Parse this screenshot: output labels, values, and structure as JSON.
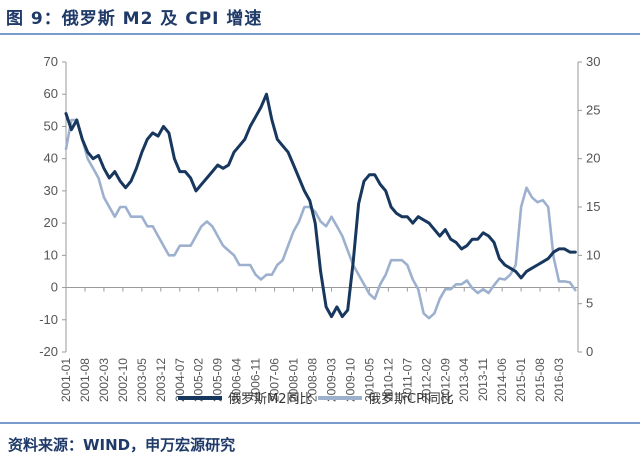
{
  "header": {
    "title": "图 9：俄罗斯 M2 及 CPI 增速"
  },
  "footer": {
    "source": "资料来源：WIND，申万宏源研究"
  },
  "colors": {
    "m2": "#17375e",
    "cpi": "#9db1cf",
    "accent": "#1f3a68",
    "rule": "#7a9ccc"
  },
  "chart_data": {
    "type": "line",
    "left_axis": {
      "min": -20,
      "max": 70,
      "step": 10,
      "ticks": [
        "-20",
        "-10",
        "0",
        "10",
        "20",
        "30",
        "40",
        "50",
        "60",
        "70"
      ]
    },
    "right_axis": {
      "min": 0,
      "max": 30,
      "step": 5,
      "ticks": [
        "0",
        "5",
        "10",
        "15",
        "20",
        "25",
        "30"
      ]
    },
    "x_range": [
      "2001-01",
      "2016-10"
    ],
    "x_ticks": [
      "2001-01",
      "2001-08",
      "2002-03",
      "2002-10",
      "2003-05",
      "2003-12",
      "2004-07",
      "2005-02",
      "2005-09",
      "2006-04",
      "2006-11",
      "2007-06",
      "2008-01",
      "2008-08",
      "2009-03",
      "2009-10",
      "2010-05",
      "2010-12",
      "2011-07",
      "2012-02",
      "2012-09",
      "2013-04",
      "2013-11",
      "2014-06",
      "2015-01",
      "2015-08",
      "2016-03"
    ],
    "grid": false,
    "legend_position": "bottom",
    "series": [
      {
        "name": "俄罗斯M2同比",
        "axis": "left",
        "color": "#17375e",
        "points": [
          [
            "2001-01",
            54
          ],
          [
            "2001-03",
            49
          ],
          [
            "2001-05",
            52
          ],
          [
            "2001-07",
            46
          ],
          [
            "2001-09",
            42
          ],
          [
            "2001-11",
            40
          ],
          [
            "2002-01",
            41
          ],
          [
            "2002-03",
            37
          ],
          [
            "2002-05",
            34
          ],
          [
            "2002-07",
            36
          ],
          [
            "2002-09",
            33
          ],
          [
            "2002-11",
            31
          ],
          [
            "2003-01",
            33
          ],
          [
            "2003-03",
            37
          ],
          [
            "2003-05",
            42
          ],
          [
            "2003-07",
            46
          ],
          [
            "2003-09",
            48
          ],
          [
            "2003-11",
            47
          ],
          [
            "2004-01",
            50
          ],
          [
            "2004-03",
            48
          ],
          [
            "2004-05",
            40
          ],
          [
            "2004-07",
            36
          ],
          [
            "2004-09",
            36
          ],
          [
            "2004-11",
            34
          ],
          [
            "2005-01",
            30
          ],
          [
            "2005-03",
            32
          ],
          [
            "2005-05",
            34
          ],
          [
            "2005-07",
            36
          ],
          [
            "2005-09",
            38
          ],
          [
            "2005-11",
            37
          ],
          [
            "2006-01",
            38
          ],
          [
            "2006-03",
            42
          ],
          [
            "2006-05",
            44
          ],
          [
            "2006-07",
            46
          ],
          [
            "2006-09",
            50
          ],
          [
            "2006-11",
            53
          ],
          [
            "2007-01",
            56
          ],
          [
            "2007-03",
            60
          ],
          [
            "2007-05",
            52
          ],
          [
            "2007-07",
            46
          ],
          [
            "2007-09",
            44
          ],
          [
            "2007-11",
            42
          ],
          [
            "2008-01",
            38
          ],
          [
            "2008-03",
            34
          ],
          [
            "2008-05",
            30
          ],
          [
            "2008-07",
            27
          ],
          [
            "2008-09",
            20
          ],
          [
            "2008-11",
            5
          ],
          [
            "2009-01",
            -6
          ],
          [
            "2009-03",
            -9
          ],
          [
            "2009-05",
            -6
          ],
          [
            "2009-07",
            -9
          ],
          [
            "2009-09",
            -7
          ],
          [
            "2009-11",
            8
          ],
          [
            "2010-01",
            26
          ],
          [
            "2010-03",
            33
          ],
          [
            "2010-05",
            35
          ],
          [
            "2010-07",
            35
          ],
          [
            "2010-09",
            32
          ],
          [
            "2010-11",
            30
          ],
          [
            "2011-01",
            25
          ],
          [
            "2011-03",
            23
          ],
          [
            "2011-05",
            22
          ],
          [
            "2011-07",
            22
          ],
          [
            "2011-09",
            20
          ],
          [
            "2011-11",
            22
          ],
          [
            "2012-01",
            21
          ],
          [
            "2012-03",
            20
          ],
          [
            "2012-05",
            18
          ],
          [
            "2012-07",
            16
          ],
          [
            "2012-09",
            18
          ],
          [
            "2012-11",
            15
          ],
          [
            "2013-01",
            14
          ],
          [
            "2013-03",
            12
          ],
          [
            "2013-05",
            13
          ],
          [
            "2013-07",
            15
          ],
          [
            "2013-09",
            15
          ],
          [
            "2013-11",
            17
          ],
          [
            "2014-01",
            16
          ],
          [
            "2014-03",
            14
          ],
          [
            "2014-05",
            9
          ],
          [
            "2014-07",
            7
          ],
          [
            "2014-09",
            6
          ],
          [
            "2014-11",
            5
          ],
          [
            "2015-01",
            3
          ],
          [
            "2015-03",
            5
          ],
          [
            "2015-05",
            6
          ],
          [
            "2015-07",
            7
          ],
          [
            "2015-09",
            8
          ],
          [
            "2015-11",
            9
          ],
          [
            "2016-01",
            11
          ],
          [
            "2016-03",
            12
          ],
          [
            "2016-05",
            12
          ],
          [
            "2016-07",
            11
          ],
          [
            "2016-09",
            11
          ]
        ]
      },
      {
        "name": "俄罗斯CPI同比",
        "axis": "right",
        "color": "#9db1cf",
        "points": [
          [
            "2001-01",
            21
          ],
          [
            "2001-03",
            24
          ],
          [
            "2001-05",
            24
          ],
          [
            "2001-07",
            22
          ],
          [
            "2001-09",
            20
          ],
          [
            "2001-11",
            19
          ],
          [
            "2002-01",
            18
          ],
          [
            "2002-03",
            16
          ],
          [
            "2002-05",
            15
          ],
          [
            "2002-07",
            14
          ],
          [
            "2002-09",
            15
          ],
          [
            "2002-11",
            15
          ],
          [
            "2003-01",
            14
          ],
          [
            "2003-03",
            14
          ],
          [
            "2003-05",
            14
          ],
          [
            "2003-07",
            13
          ],
          [
            "2003-09",
            13
          ],
          [
            "2003-11",
            12
          ],
          [
            "2004-01",
            11
          ],
          [
            "2004-03",
            10
          ],
          [
            "2004-05",
            10
          ],
          [
            "2004-07",
            11
          ],
          [
            "2004-09",
            11
          ],
          [
            "2004-11",
            11
          ],
          [
            "2005-01",
            12
          ],
          [
            "2005-03",
            13
          ],
          [
            "2005-05",
            13.5
          ],
          [
            "2005-07",
            13
          ],
          [
            "2005-09",
            12
          ],
          [
            "2005-11",
            11
          ],
          [
            "2006-01",
            10.5
          ],
          [
            "2006-03",
            10
          ],
          [
            "2006-05",
            9
          ],
          [
            "2006-07",
            9
          ],
          [
            "2006-09",
            9
          ],
          [
            "2006-11",
            8
          ],
          [
            "2007-01",
            7.5
          ],
          [
            "2007-03",
            8
          ],
          [
            "2007-05",
            8
          ],
          [
            "2007-07",
            9
          ],
          [
            "2007-09",
            9.5
          ],
          [
            "2007-11",
            11
          ],
          [
            "2008-01",
            12.5
          ],
          [
            "2008-03",
            13.5
          ],
          [
            "2008-05",
            15
          ],
          [
            "2008-07",
            15
          ],
          [
            "2008-09",
            14.5
          ],
          [
            "2008-11",
            13.5
          ],
          [
            "2009-01",
            13
          ],
          [
            "2009-03",
            14
          ],
          [
            "2009-05",
            13
          ],
          [
            "2009-07",
            12
          ],
          [
            "2009-09",
            10.5
          ],
          [
            "2009-11",
            9
          ],
          [
            "2010-01",
            8
          ],
          [
            "2010-03",
            7
          ],
          [
            "2010-05",
            6
          ],
          [
            "2010-07",
            5.5
          ],
          [
            "2010-09",
            7
          ],
          [
            "2010-11",
            8
          ],
          [
            "2011-01",
            9.5
          ],
          [
            "2011-03",
            9.5
          ],
          [
            "2011-05",
            9.5
          ],
          [
            "2011-07",
            9
          ],
          [
            "2011-09",
            7.5
          ],
          [
            "2011-11",
            6.5
          ],
          [
            "2012-01",
            4
          ],
          [
            "2012-03",
            3.5
          ],
          [
            "2012-05",
            4
          ],
          [
            "2012-07",
            5.5
          ],
          [
            "2012-09",
            6.5
          ],
          [
            "2012-11",
            6.5
          ],
          [
            "2013-01",
            7
          ],
          [
            "2013-03",
            7
          ],
          [
            "2013-05",
            7.4
          ],
          [
            "2013-07",
            6.6
          ],
          [
            "2013-09",
            6.1
          ],
          [
            "2013-11",
            6.5
          ],
          [
            "2014-01",
            6.1
          ],
          [
            "2014-03",
            6.9
          ],
          [
            "2014-05",
            7.6
          ],
          [
            "2014-07",
            7.5
          ],
          [
            "2014-09",
            8
          ],
          [
            "2014-11",
            9
          ],
          [
            "2015-01",
            15
          ],
          [
            "2015-03",
            17
          ],
          [
            "2015-05",
            16
          ],
          [
            "2015-07",
            15.5
          ],
          [
            "2015-09",
            15.7
          ],
          [
            "2015-11",
            15
          ],
          [
            "2016-01",
            9.8
          ],
          [
            "2016-03",
            7.3
          ],
          [
            "2016-05",
            7.3
          ],
          [
            "2016-07",
            7.2
          ],
          [
            "2016-09",
            6.4
          ]
        ]
      }
    ]
  }
}
